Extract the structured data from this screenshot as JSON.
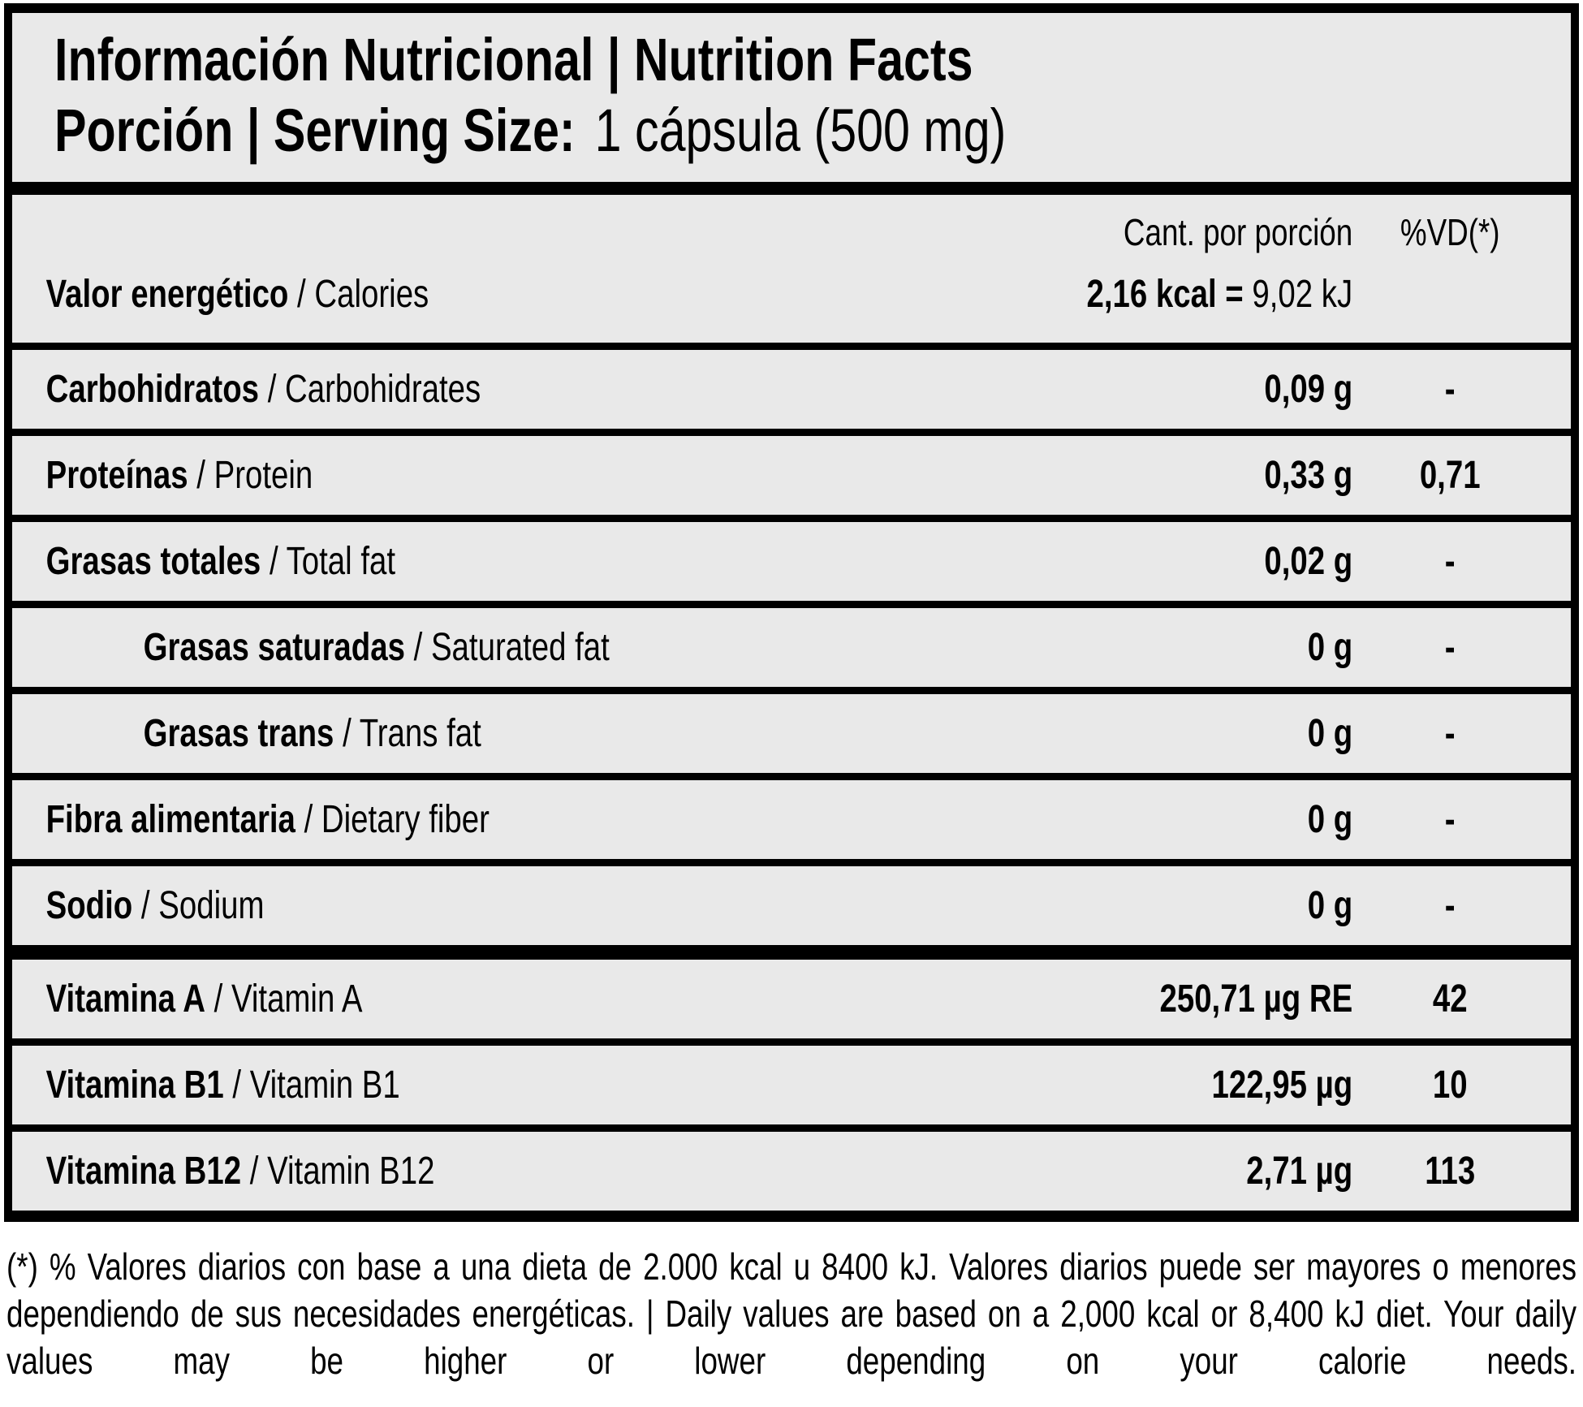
{
  "header": {
    "title": "Información Nutricional | Nutrition Facts",
    "serving_label": "Porción | Serving Size:",
    "serving_value": "1 cápsula (500 mg)"
  },
  "columns": {
    "amount": "Cant. por porción",
    "dv": "%VD(*)"
  },
  "rows": [
    {
      "name_bold": "Valor energético",
      "name_rest": " / Calories",
      "amount_bold": "2,16 kcal = ",
      "amount_rest": "9,02 kJ",
      "dv": ""
    },
    {
      "name_bold": "Carbohidratos",
      "name_rest": " / Carbohidrates",
      "amount_bold": "0,09 g",
      "amount_rest": "",
      "dv": "-"
    },
    {
      "name_bold": "Proteínas",
      "name_rest": " / Protein",
      "amount_bold": "0,33 g",
      "amount_rest": "",
      "dv": "0,71"
    },
    {
      "name_bold": "Grasas totales",
      "name_rest": " / Total fat",
      "amount_bold": "0,02 g",
      "amount_rest": "",
      "dv": "-"
    },
    {
      "name_bold": "Grasas saturadas",
      "name_rest": " / Saturated fat",
      "amount_bold": "0 g",
      "amount_rest": "",
      "dv": "-"
    },
    {
      "name_bold": "Grasas trans",
      "name_rest": " / Trans fat",
      "amount_bold": "0 g",
      "amount_rest": "",
      "dv": "-"
    },
    {
      "name_bold": "Fibra alimentaria",
      "name_rest": " / Dietary fiber",
      "amount_bold": "0 g",
      "amount_rest": "",
      "dv": "-"
    },
    {
      "name_bold": "Sodio",
      "name_rest": " / Sodium",
      "amount_bold": "0 g",
      "amount_rest": "",
      "dv": "-"
    },
    {
      "name_bold": "Vitamina A",
      "name_rest": " / Vitamin A",
      "amount_bold": "250,71 µg RE",
      "amount_rest": "",
      "dv": "42"
    },
    {
      "name_bold": "Vitamina B1",
      "name_rest": " / Vitamin B1",
      "amount_bold": "122,95 µg",
      "amount_rest": "",
      "dv": "10"
    },
    {
      "name_bold": "Vitamina B12",
      "name_rest": " / Vitamin B12",
      "amount_bold": "2,71 µg",
      "amount_rest": "",
      "dv": "113"
    }
  ],
  "colors": {
    "table_background": "#e9e9e9",
    "border": "#000000",
    "page_background": "#ffffff",
    "text": "#000000"
  },
  "footnote": "(*) % Valores diarios con base a una dieta de 2.000 kcal u 8400 kJ. Valores diarios puede ser mayores o menores dependiendo de sus necesidades energéticas. | Daily values are based on a 2,000 kcal or 8,400 kJ diet. Your daily values may be higher or lower depending on your calorie needs."
}
